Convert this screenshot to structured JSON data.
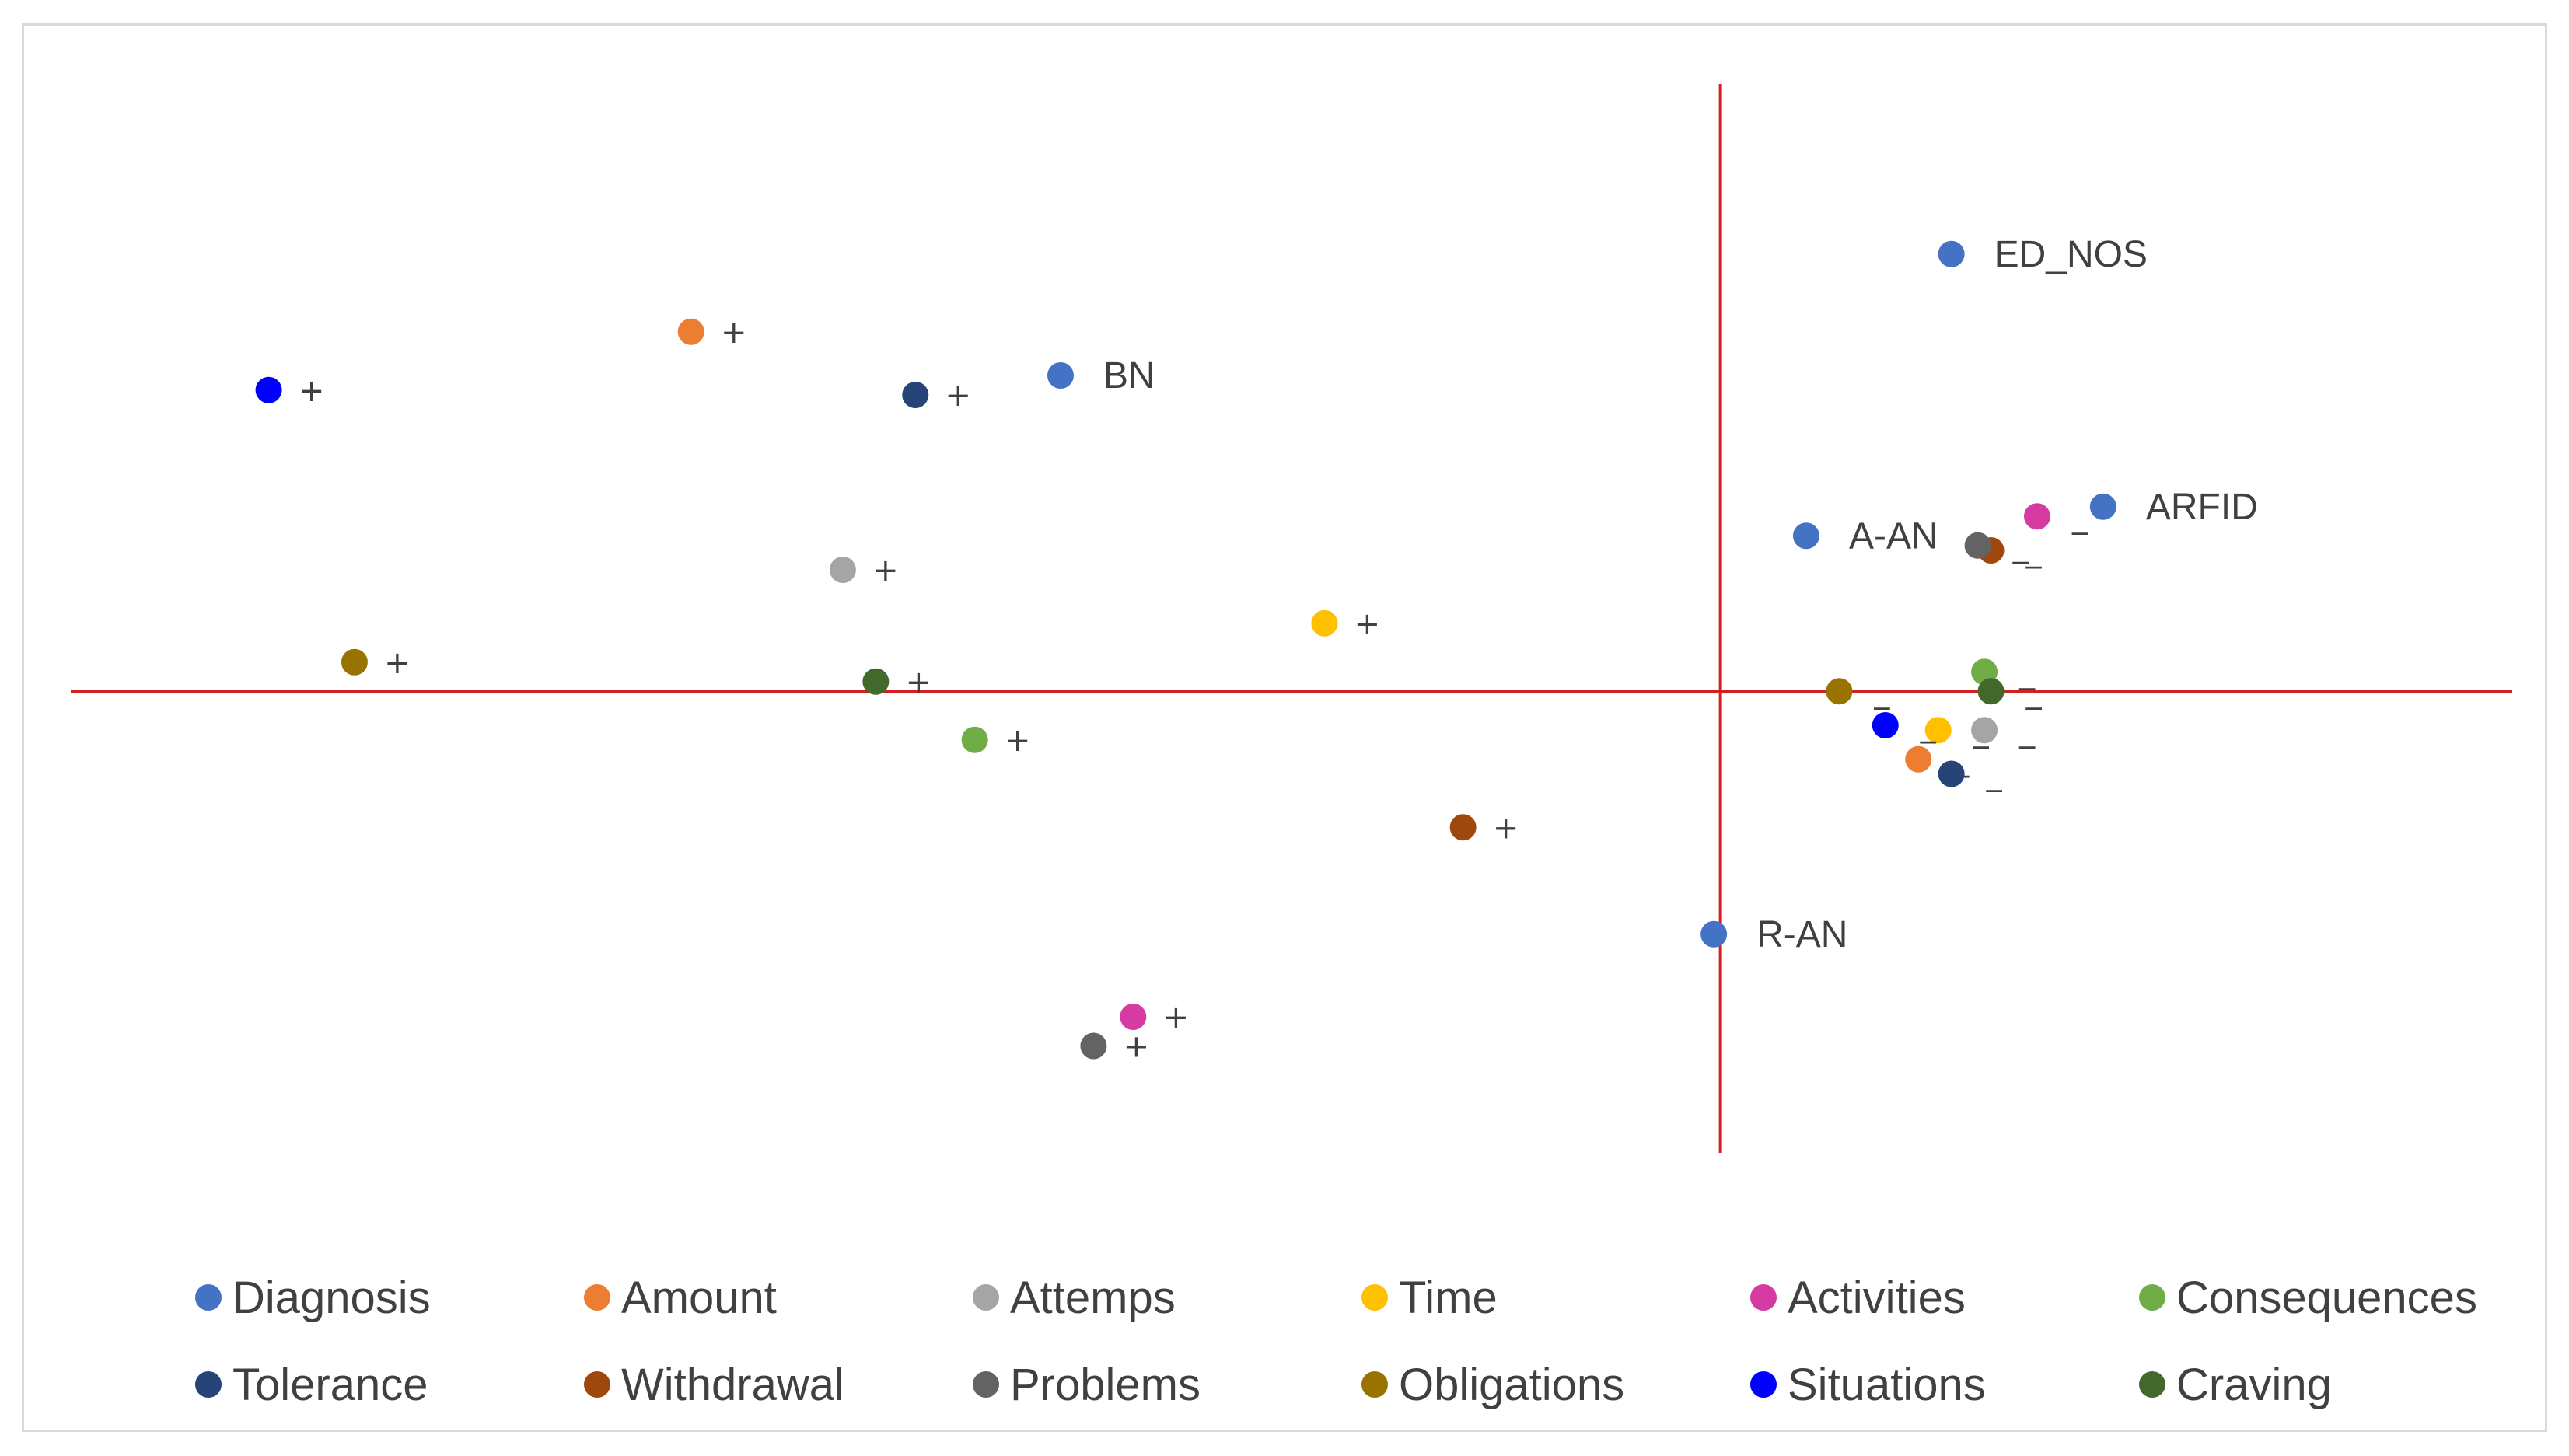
{
  "chart_data": {
    "type": "scatter",
    "title": "",
    "xlabel": "",
    "ylabel": "",
    "xlim": [
      -2.5,
      1.2
    ],
    "ylim": [
      -0.95,
      1.25
    ],
    "axes_cross_at": [
      0,
      0
    ],
    "axis_color": "#d42020",
    "grid": false,
    "legend_position": "bottom",
    "series": [
      {
        "name": "Diagnosis",
        "color": "#4472c4",
        "points": [
          {
            "x": 0.35,
            "y": 0.9,
            "label": "ED_NOS"
          },
          {
            "x": -1.0,
            "y": 0.65,
            "label": "BN"
          },
          {
            "x": 0.58,
            "y": 0.38,
            "label": "ARFID"
          },
          {
            "x": 0.13,
            "y": 0.32,
            "label": "A-AN"
          },
          {
            "x": -0.01,
            "y": -0.5,
            "label": "R-AN"
          }
        ]
      },
      {
        "name": "Amount",
        "color": "#ed7d31",
        "points": [
          {
            "x": -1.56,
            "y": 0.74,
            "label": "+"
          },
          {
            "x": 0.3,
            "y": -0.14,
            "label": "_"
          }
        ]
      },
      {
        "name": "Attemps",
        "color": "#a5a5a5",
        "points": [
          {
            "x": -1.33,
            "y": 0.25,
            "label": "+"
          },
          {
            "x": 0.4,
            "y": -0.08,
            "label": "_"
          }
        ]
      },
      {
        "name": "Time",
        "color": "#ffc000",
        "points": [
          {
            "x": -0.6,
            "y": 0.14,
            "label": "+"
          },
          {
            "x": 0.33,
            "y": -0.08,
            "label": "_"
          }
        ]
      },
      {
        "name": "Activities",
        "color": "#d63ba1",
        "points": [
          {
            "x": -0.89,
            "y": -0.67,
            "label": "+"
          },
          {
            "x": 0.48,
            "y": 0.36,
            "label": "_"
          }
        ]
      },
      {
        "name": "Consequences",
        "color": "#70ad47",
        "points": [
          {
            "x": -1.13,
            "y": -0.1,
            "label": "+"
          },
          {
            "x": 0.4,
            "y": 0.04,
            "label": "_"
          }
        ]
      },
      {
        "name": "Tolerance",
        "color": "#264478",
        "points": [
          {
            "x": -1.22,
            "y": 0.61,
            "label": "+"
          },
          {
            "x": 0.35,
            "y": -0.17,
            "label": "_"
          }
        ]
      },
      {
        "name": "Withdrawal",
        "color": "#9e480e",
        "points": [
          {
            "x": -0.39,
            "y": -0.28,
            "label": "+"
          },
          {
            "x": 0.41,
            "y": 0.29,
            "label": "_"
          }
        ]
      },
      {
        "name": "Problems",
        "color": "#636363",
        "points": [
          {
            "x": -0.95,
            "y": -0.73,
            "label": "+"
          },
          {
            "x": 0.39,
            "y": 0.3,
            "label": "_"
          }
        ]
      },
      {
        "name": "Obligations",
        "color": "#997300",
        "points": [
          {
            "x": -2.07,
            "y": 0.06,
            "label": "+"
          },
          {
            "x": 0.18,
            "y": 0.0,
            "label": "_"
          }
        ]
      },
      {
        "name": "Situations",
        "color": "#0000ff",
        "points": [
          {
            "x": -2.2,
            "y": 0.62,
            "label": "+"
          },
          {
            "x": 0.25,
            "y": -0.07,
            "label": "_"
          }
        ]
      },
      {
        "name": "Craving",
        "color": "#43682b",
        "points": [
          {
            "x": -1.28,
            "y": 0.02,
            "label": "+"
          },
          {
            "x": 0.41,
            "y": 0.0,
            "label": "_"
          }
        ]
      }
    ]
  }
}
